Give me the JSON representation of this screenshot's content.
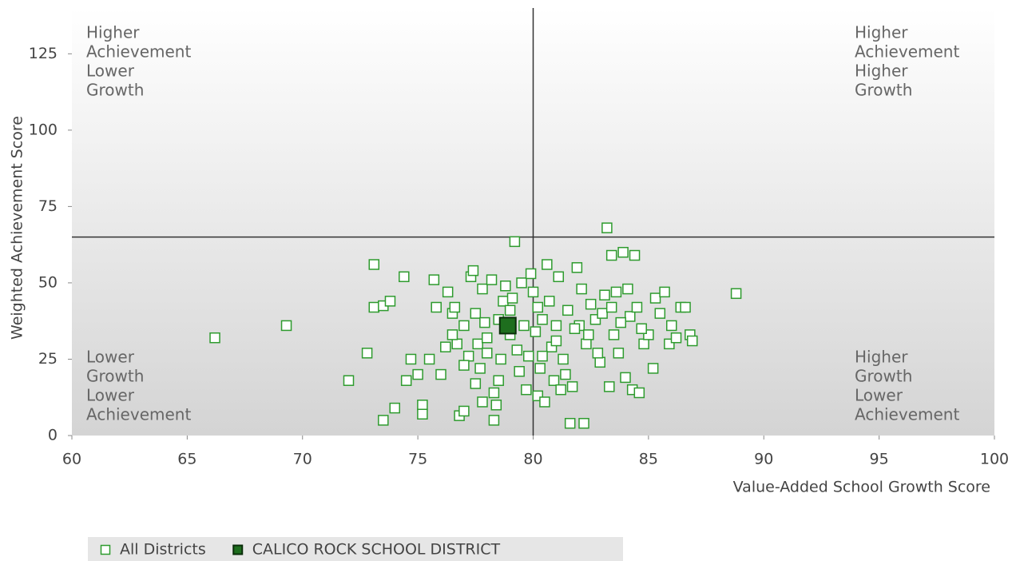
{
  "chart_data": {
    "type": "scatter",
    "xlabel": "Value-Added School Growth Score",
    "ylabel": "Weighted Achievement Score",
    "xlim": [
      60,
      100
    ],
    "ylim": [
      0,
      140
    ],
    "xticks": [
      60,
      65,
      70,
      75,
      80,
      85,
      90,
      95,
      100
    ],
    "yticks": [
      0,
      25,
      50,
      75,
      100,
      125
    ],
    "quadrant_lines": {
      "x": 80,
      "y": 65
    },
    "quadrant_labels": {
      "top_left": [
        "Higher",
        "Achievement",
        "Lower",
        "Growth"
      ],
      "top_right": [
        "Higher",
        "Achievement",
        "Higher",
        "Growth"
      ],
      "bottom_left": [
        "Lower",
        "Growth",
        "Lower",
        "Achievement"
      ],
      "bottom_right": [
        "Higher",
        "Growth",
        "Lower",
        "Achievement"
      ]
    },
    "legend": "bottom-left",
    "series": [
      {
        "name": "All Districts",
        "color": "#2e9b2e",
        "marker": "hollow",
        "x": [
          66.2,
          69.3,
          72,
          72.8,
          73.1,
          73.1,
          73.5,
          73.8,
          73.5,
          74,
          74.4,
          74.5,
          74.7,
          75,
          75.2,
          75.2,
          75.5,
          75.7,
          75.8,
          76,
          76.2,
          76.3,
          76.5,
          76.6,
          76.7,
          76.8,
          77,
          77,
          77.2,
          77.3,
          77.4,
          77.5,
          77.6,
          77.7,
          77.8,
          77.8,
          78,
          78.2,
          78.3,
          78.3,
          78.4,
          78.5,
          78.5,
          78.7,
          78.8,
          79,
          79.2,
          79.3,
          79.4,
          79.5,
          79.7,
          79.8,
          79.9,
          80,
          80.1,
          80.2,
          80.3,
          80.4,
          80.5,
          80.6,
          80.7,
          80.8,
          80.9,
          81,
          81.2,
          81.1,
          81.3,
          81.5,
          81.6,
          81.7,
          81.9,
          82,
          82.1,
          82.2,
          82.3,
          82.5,
          82.7,
          82.9,
          83.1,
          83.2,
          83.3,
          83.4,
          83.5,
          83.6,
          83.7,
          83.9,
          84,
          84.1,
          84.2,
          84.3,
          84.4,
          84.5,
          84.6,
          84.8,
          85,
          85.2,
          85.3,
          85.5,
          85.7,
          85.9,
          86,
          86.2,
          86.4,
          86.6,
          86.8,
          86.9,
          88.8,
          76.5,
          77,
          77.5,
          78,
          78.6,
          79,
          79.6,
          80.4,
          81,
          81.8,
          82.4,
          83,
          83.8,
          84.7,
          81.4,
          80.2,
          79.1,
          77.9,
          82.8,
          83.4
        ],
        "y": [
          32,
          36,
          18,
          27,
          56,
          42,
          42.5,
          44,
          5,
          9,
          52,
          18,
          25,
          20,
          10,
          7,
          25,
          51,
          42,
          20,
          29,
          47,
          40,
          42,
          30,
          6.5,
          8,
          36,
          26,
          52,
          54,
          40,
          30,
          22,
          11,
          48,
          27,
          51,
          14,
          5,
          10,
          18,
          38,
          44,
          49,
          33,
          63.5,
          28,
          21,
          50,
          15,
          26,
          53,
          47,
          34,
          13,
          22,
          38,
          11,
          56,
          44,
          29,
          18,
          36,
          15,
          52,
          25,
          41,
          4,
          16,
          55,
          36,
          48,
          4,
          30,
          43,
          38,
          24,
          46,
          68,
          16,
          59,
          33,
          47,
          27,
          60,
          19,
          48,
          39,
          15,
          59,
          42,
          14,
          30,
          33,
          22,
          45,
          40,
          47,
          30,
          36,
          32,
          42,
          42,
          33,
          31,
          46.5,
          33,
          23,
          17,
          32,
          25,
          41,
          36,
          26,
          31,
          35,
          33,
          40,
          37,
          35,
          20,
          42,
          45,
          37,
          27,
          42
        ]
      },
      {
        "name": "CALICO ROCK SCHOOL DISTRICT",
        "color": "#1e6e1e",
        "marker": "filled",
        "x": [
          78.9
        ],
        "y": [
          36
        ]
      }
    ]
  }
}
